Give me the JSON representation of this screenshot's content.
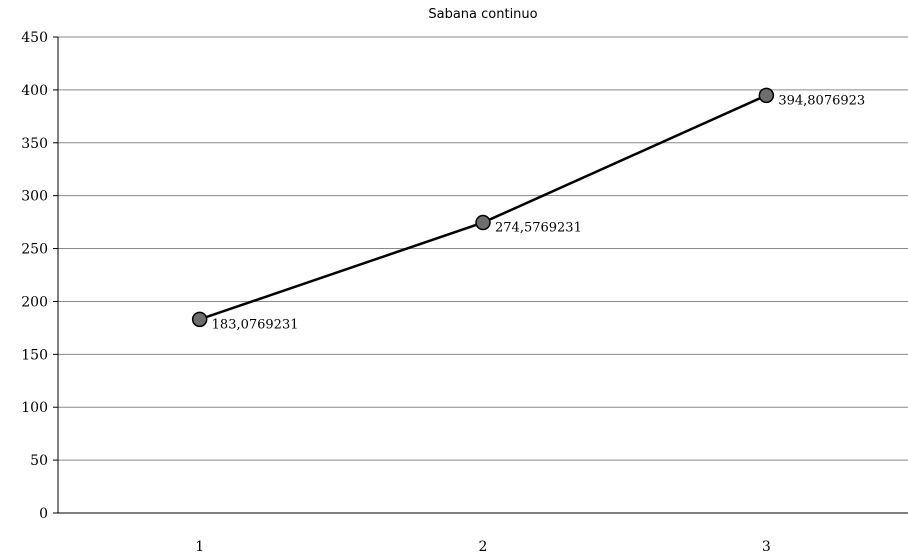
{
  "chart_data": {
    "type": "line",
    "title": "Sabana continuo",
    "xlabel": "",
    "ylabel": "",
    "categories": [
      "1",
      "2",
      "3"
    ],
    "series": [
      {
        "values": [
          183.0769231,
          274.5769231,
          394.8076923
        ],
        "data_labels": [
          "183,0769231",
          "274,5769231",
          "394,8076923"
        ],
        "color": "#000000",
        "marker_color": "#6e6e6e"
      }
    ],
    "ylim": [
      0,
      450
    ],
    "yticks": [
      0,
      50,
      100,
      150,
      200,
      250,
      300,
      350,
      400,
      450
    ],
    "ytick_labels": [
      "0",
      "50",
      "100",
      "150",
      "200",
      "250",
      "300",
      "350",
      "400",
      "450"
    ],
    "grid": true,
    "legend": "none",
    "gridline_color": "#8a8a8a"
  }
}
